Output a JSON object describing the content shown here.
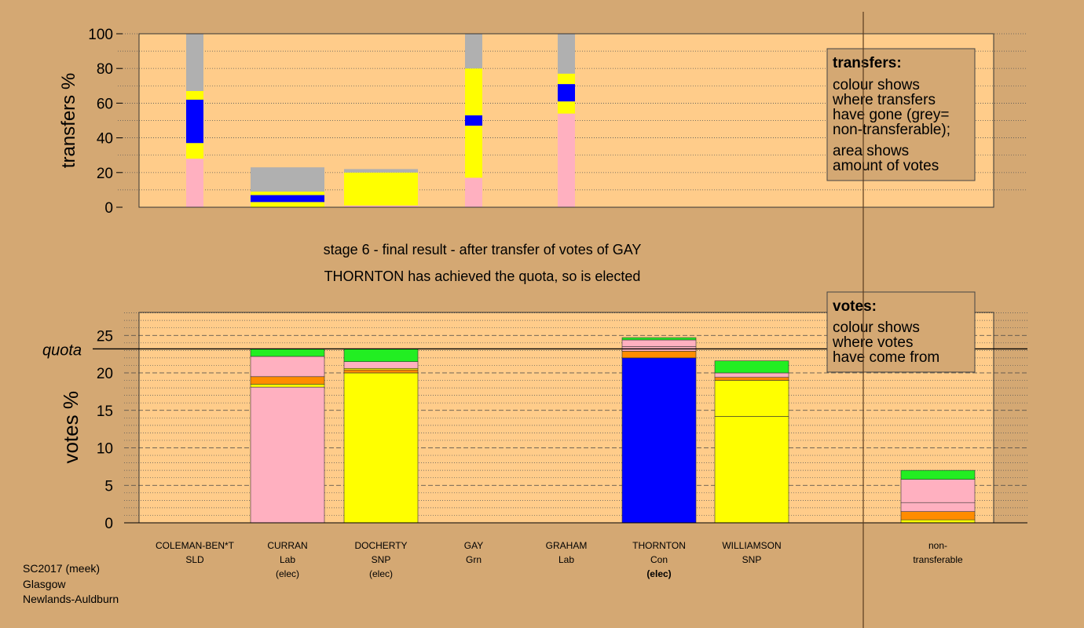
{
  "titles": {
    "stage": "stage 6 - final result - after transfer of votes of GAY",
    "status": "THORNTON has achieved the quota, so is elected"
  },
  "footer": [
    "SC2017 (meek)",
    "Glasgow",
    "Newlands-Auldburn"
  ],
  "legend_transfers": {
    "heading": "transfers:",
    "lines1": [
      "colour shows",
      "where transfers",
      "have gone (grey=",
      "non-transferable);"
    ],
    "lines2": [
      "area shows",
      "amount of votes"
    ]
  },
  "legend_votes": {
    "heading": "votes:",
    "lines": [
      "colour shows",
      "where votes",
      "have come from"
    ]
  },
  "colors": {
    "background": "#d4a873",
    "plot_bg": "#ffcc8a",
    "pink": "#ffb0c0",
    "blue": "#0000ff",
    "yellow": "#ffff00",
    "grey": "#b0b0b0",
    "green": "#22ee22",
    "orange": "#ff8c00",
    "quota_line": "#000000"
  },
  "candidates": [
    {
      "name": "COLEMAN-BEN*T",
      "party": "SLD",
      "note": ""
    },
    {
      "name": "CURRAN",
      "party": "Lab",
      "note": "(elec)"
    },
    {
      "name": "DOCHERTY",
      "party": "SNP",
      "note": "(elec)"
    },
    {
      "name": "GAY",
      "party": "Grn",
      "note": ""
    },
    {
      "name": "GRAHAM",
      "party": "Lab",
      "note": ""
    },
    {
      "name": "THORNTON",
      "party": "Con",
      "note": "(elec)",
      "note_bold": true
    },
    {
      "name": "WILLIAMSON",
      "party": "SNP",
      "note": ""
    }
  ],
  "nontransferable_label": [
    "non-",
    "transferable"
  ],
  "chart_data": [
    {
      "type": "bar",
      "stacked": true,
      "title": "",
      "ylabel": "transfers %",
      "ylim": [
        0,
        100
      ],
      "yticks": [
        0,
        20,
        40,
        60,
        80,
        100
      ],
      "bars": [
        {
          "candidate": "COLEMAN-BEN*T",
          "width": "narrow",
          "segments": [
            {
              "color": "pink",
              "value": 28
            },
            {
              "color": "yellow",
              "value": 9
            },
            {
              "color": "blue",
              "value": 25
            },
            {
              "color": "yellow",
              "value": 5
            },
            {
              "color": "grey",
              "value": 33
            }
          ]
        },
        {
          "candidate": "CURRAN",
          "width": "full",
          "segments": [
            {
              "color": "yellow",
              "value": 3
            },
            {
              "color": "blue",
              "value": 4
            },
            {
              "color": "yellow",
              "value": 2
            },
            {
              "color": "grey",
              "value": 14
            }
          ]
        },
        {
          "candidate": "DOCHERTY",
          "width": "full",
          "segments": [
            {
              "color": "pink",
              "value": 1
            },
            {
              "color": "yellow",
              "value": 19
            },
            {
              "color": "grey",
              "value": 2
            }
          ]
        },
        {
          "candidate": "GAY",
          "width": "narrow",
          "segments": [
            {
              "color": "pink",
              "value": 17
            },
            {
              "color": "yellow",
              "value": 30
            },
            {
              "color": "blue",
              "value": 6
            },
            {
              "color": "yellow",
              "value": 27
            },
            {
              "color": "grey",
              "value": 20
            }
          ]
        },
        {
          "candidate": "GRAHAM",
          "width": "narrow",
          "segments": [
            {
              "color": "pink",
              "value": 54
            },
            {
              "color": "yellow",
              "value": 7
            },
            {
              "color": "blue",
              "value": 10
            },
            {
              "color": "yellow",
              "value": 6
            },
            {
              "color": "grey",
              "value": 23
            }
          ]
        }
      ]
    },
    {
      "type": "bar",
      "stacked": true,
      "title": "",
      "ylabel": "votes %",
      "ylim": [
        0,
        28
      ],
      "yticks": [
        0,
        5,
        10,
        15,
        20,
        25
      ],
      "quota": 23.2,
      "quota_label": "quota",
      "bars": [
        {
          "candidate": "CURRAN",
          "segments": [
            {
              "color": "pink",
              "value": 18.1
            },
            {
              "color": "yellow",
              "value": 0.4
            },
            {
              "color": "orange",
              "value": 1.0
            },
            {
              "color": "pink",
              "value": 2.7
            },
            {
              "color": "green",
              "value": 1.0
            }
          ]
        },
        {
          "candidate": "DOCHERTY",
          "segments": [
            {
              "color": "yellow",
              "value": 20.0
            },
            {
              "color": "orange",
              "value": 0.4
            },
            {
              "color": "yellow",
              "value": 0.2
            },
            {
              "color": "pink",
              "value": 0.9
            },
            {
              "color": "green",
              "value": 1.7
            }
          ]
        },
        {
          "candidate": "THORNTON",
          "segments": [
            {
              "color": "blue",
              "value": 22.0
            },
            {
              "color": "orange",
              "value": 0.9
            },
            {
              "color": "pink",
              "value": 0.6
            },
            {
              "color": "pink",
              "value": 0.9
            },
            {
              "color": "green",
              "value": 0.3
            }
          ]
        },
        {
          "candidate": "WILLIAMSON",
          "segments": [
            {
              "color": "yellow",
              "value": 14.2
            },
            {
              "color": "yellow",
              "value": 4.8
            },
            {
              "color": "orange",
              "value": 0.4
            },
            {
              "color": "pink",
              "value": 0.6
            },
            {
              "color": "green",
              "value": 1.6
            }
          ]
        },
        {
          "candidate": "non-transferable",
          "segments": [
            {
              "color": "yellow",
              "value": 0.4
            },
            {
              "color": "orange",
              "value": 1.1
            },
            {
              "color": "pink",
              "value": 1.2
            },
            {
              "color": "pink",
              "value": 3.1
            },
            {
              "color": "green",
              "value": 1.2
            }
          ]
        }
      ]
    }
  ]
}
